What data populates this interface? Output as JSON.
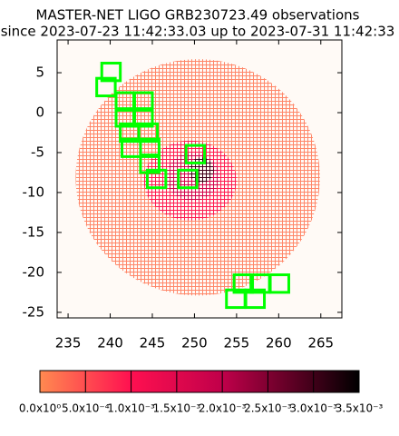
{
  "chart_data": {
    "type": "skymap",
    "title": "MASTER-NET LIGO GRB230723.49 observations",
    "subtitle": "since 2023-07-23 11:42:33.03 up to 2023-07-31 11:42:33",
    "xlim": [
      233.7,
      267.5
    ],
    "ylim": [
      -25.7,
      9.1
    ],
    "xticks": [
      235,
      240,
      245,
      250,
      255,
      260,
      265
    ],
    "yticks": [
      5,
      0,
      -5,
      -10,
      -15,
      -20,
      -25
    ],
    "probability": [
      {
        "x": 250.4,
        "y": -8.1,
        "rx": 14.5,
        "ry": 14.8,
        "value": 0.0002
      },
      {
        "x": 249.5,
        "y": -8.5,
        "rx": 5.5,
        "ry": 5.0,
        "value": 0.0009
      },
      {
        "x": 249.8,
        "y": -8.0,
        "rx": 3.2,
        "ry": 3.0,
        "value": 0.0017
      },
      {
        "x": 250.8,
        "y": -7.2,
        "rx": 1.5,
        "ry": 1.6,
        "value": 0.003
      }
    ],
    "fields": {
      "color": "#00ff00",
      "size": 2.2,
      "x": [
        240.1,
        239.5,
        241.8,
        243.9,
        241.8,
        243.9,
        242.3,
        244.5,
        242.5,
        244.7,
        244.7,
        245.5,
        250.1,
        249.2,
        255.8,
        257.8,
        260.1,
        254.9,
        257.2
      ],
      "y": [
        5.1,
        3.2,
        1.4,
        1.4,
        -0.6,
        -0.6,
        -2.5,
        -2.5,
        -4.4,
        -4.4,
        -6.4,
        -8.3,
        -5.2,
        -8.3,
        -21.4,
        -21.4,
        -21.4,
        -23.3,
        -23.3
      ]
    },
    "colorbar": {
      "lim": [
        0,
        0.0035
      ],
      "colormap": [
        {
          "value": 0,
          "color": "#ff8a50"
        },
        {
          "value": 0.001,
          "color": "#ff1050"
        },
        {
          "value": 0.002,
          "color": "#c0004a"
        },
        {
          "value": 0.0035,
          "color": "#000000"
        }
      ],
      "ticks": [
        {
          "value": 0,
          "label": "0.0x10⁰"
        },
        {
          "value": 0.0005,
          "label": "5.0x10⁻⁴"
        },
        {
          "value": 0.001,
          "label": "1.0x10⁻³"
        },
        {
          "value": 0.0015,
          "label": "1.5x10⁻³"
        },
        {
          "value": 0.002,
          "label": "2.0x10⁻³"
        },
        {
          "value": 0.0025,
          "label": "2.5x10⁻³"
        },
        {
          "value": 0.003,
          "label": "3.0x10⁻³"
        },
        {
          "value": 0.0035,
          "label": "3.5x10⁻³"
        }
      ]
    }
  }
}
